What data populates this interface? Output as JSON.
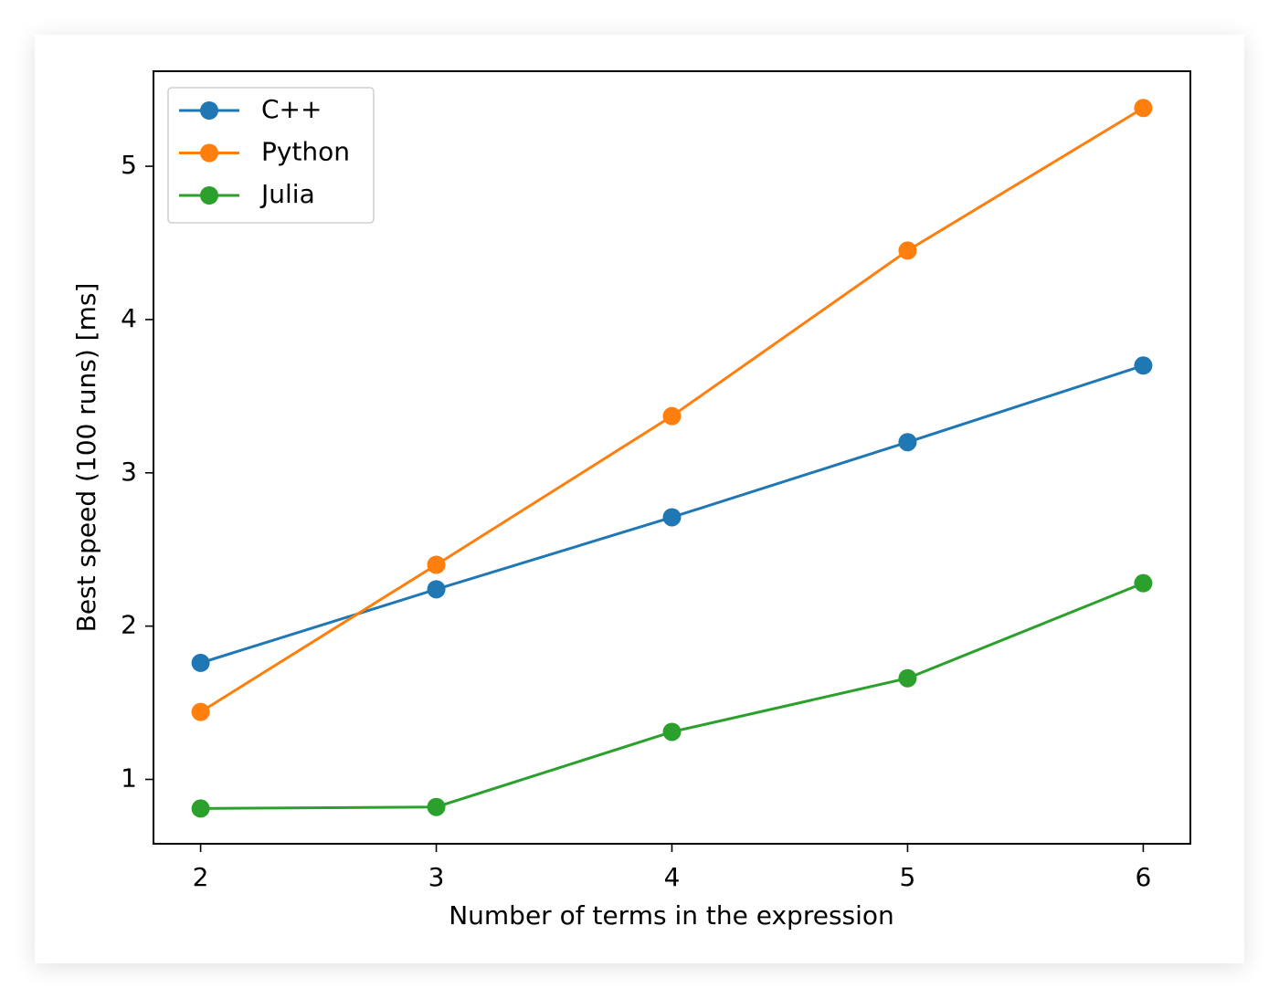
{
  "chart_data": {
    "type": "line",
    "x_label": "Number of terms in the expression",
    "y_label": "Best speed (100 runs) [ms]",
    "x": [
      2,
      3,
      4,
      5,
      6
    ],
    "series": [
      {
        "name": "C++",
        "color": "#1f77b4",
        "values": [
          1.76,
          2.24,
          2.71,
          3.2,
          3.7
        ]
      },
      {
        "name": "Python",
        "color": "#ff7f0e",
        "values": [
          1.44,
          2.4,
          3.37,
          4.45,
          5.38
        ]
      },
      {
        "name": "Julia",
        "color": "#2ca02c",
        "values": [
          0.81,
          0.82,
          1.31,
          1.66,
          2.28
        ]
      }
    ],
    "xlim": [
      1.8,
      6.2
    ],
    "xticks": [
      2,
      3,
      4,
      5,
      6
    ],
    "ylim": [
      0.58,
      5.62
    ],
    "yticks": [
      1,
      2,
      3,
      4,
      5
    ],
    "grid": false,
    "legend": "upper left",
    "markers": true
  }
}
